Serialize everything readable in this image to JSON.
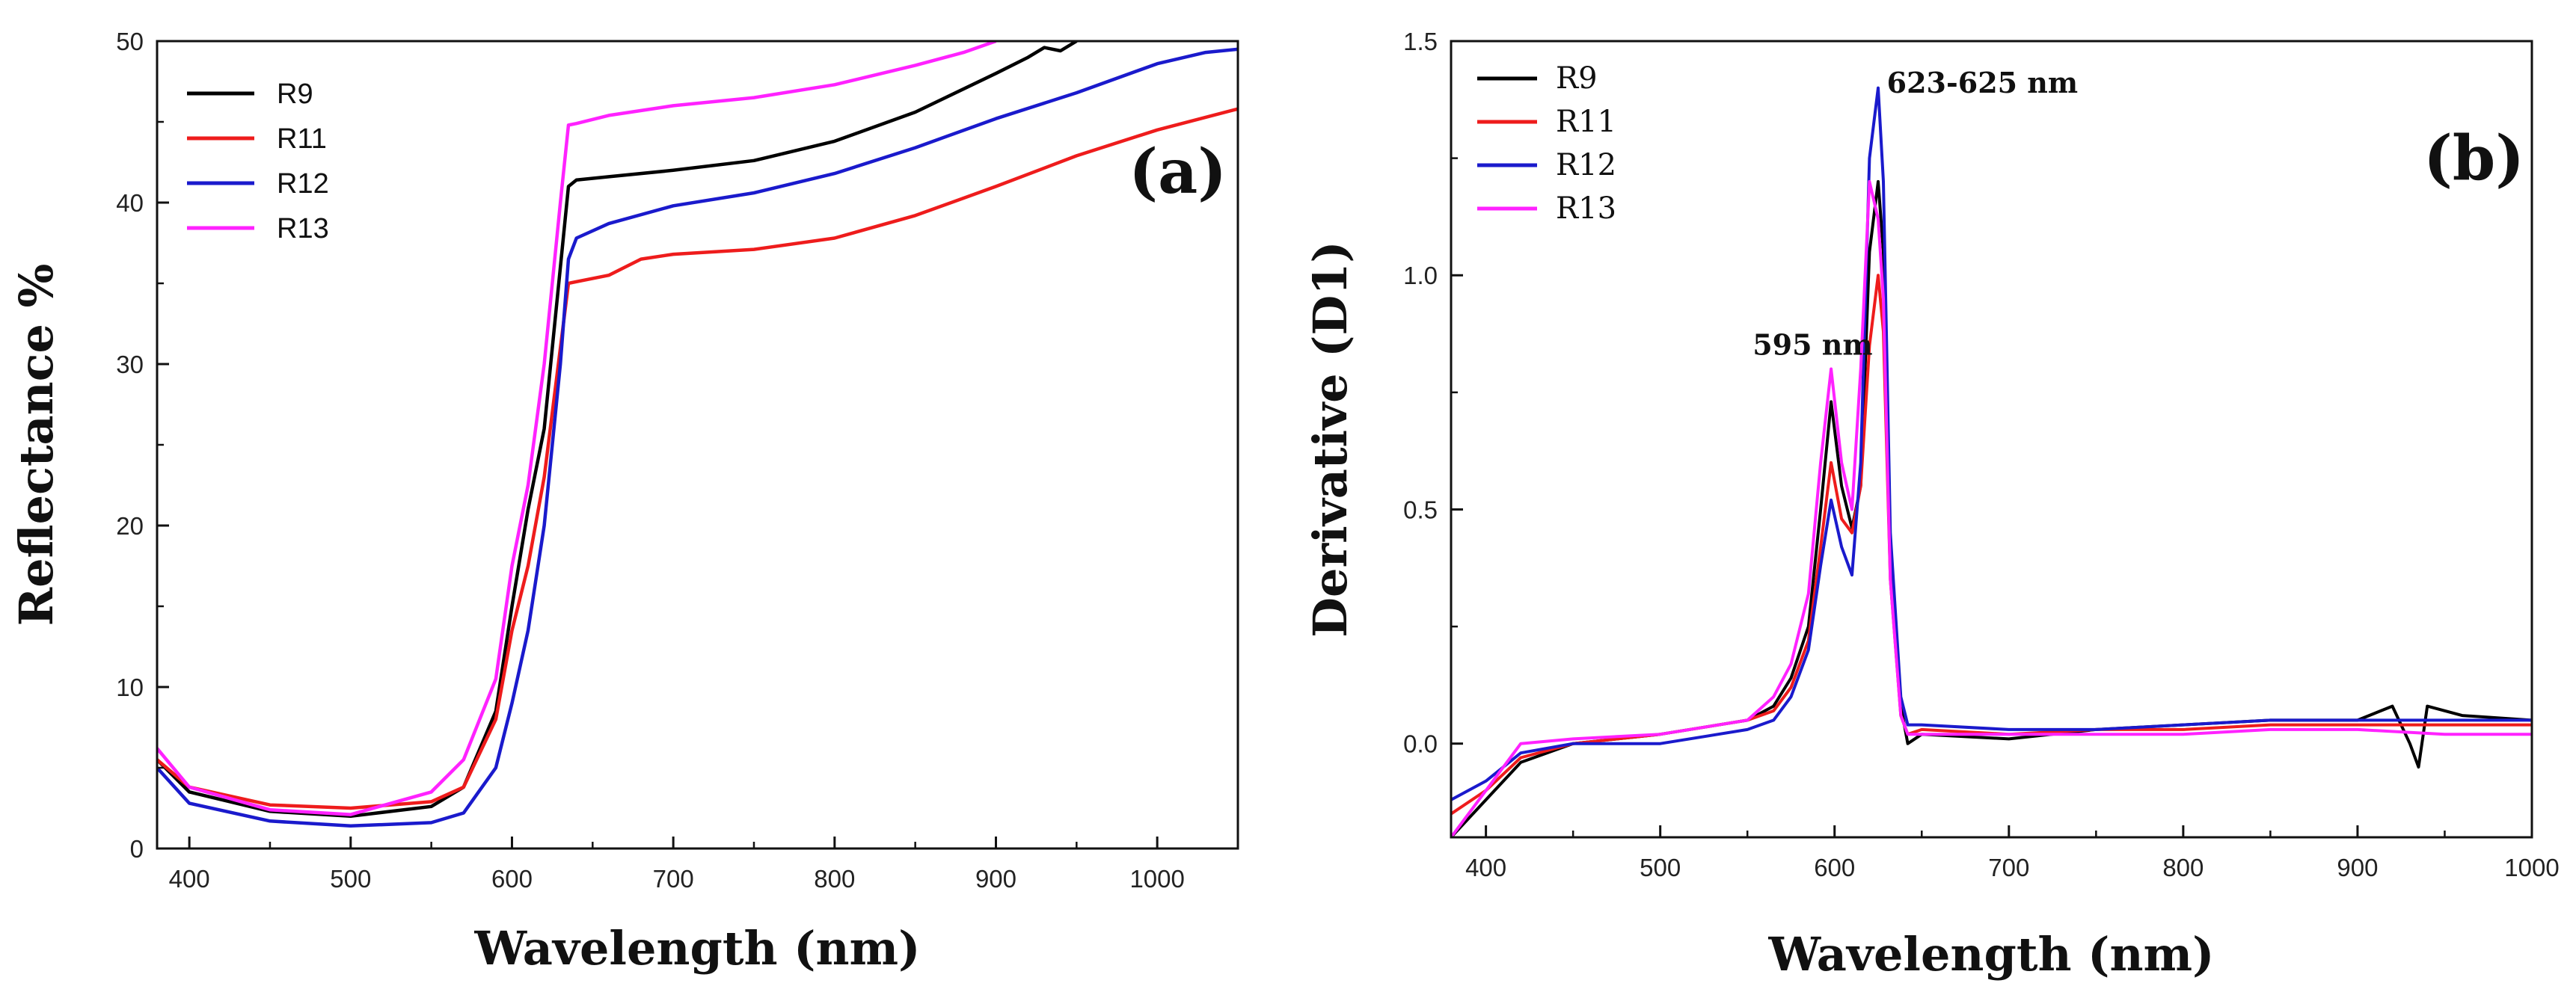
{
  "chart_data": [
    {
      "type": "line",
      "panel_label": "(a)",
      "xlabel": "Wavelength (nm)",
      "ylabel": "Reflectance %",
      "xlim": [
        380,
        1050
      ],
      "ylim": [
        0,
        50
      ],
      "xticks": [
        400,
        500,
        600,
        700,
        800,
        900,
        1000
      ],
      "yticks": [
        0,
        10,
        20,
        30,
        40,
        50
      ],
      "grid": false,
      "legend_position": "top-left",
      "series": [
        {
          "name": "R9",
          "color": "#000000",
          "x": [
            380,
            400,
            450,
            500,
            550,
            570,
            590,
            600,
            610,
            620,
            630,
            635,
            640,
            660,
            700,
            750,
            800,
            850,
            900,
            920,
            930,
            940,
            950
          ],
          "y": [
            5.5,
            3.5,
            2.3,
            2.0,
            2.6,
            3.8,
            8.5,
            15.0,
            21.0,
            26.0,
            36.0,
            41.0,
            41.4,
            41.6,
            42.0,
            42.6,
            43.8,
            45.6,
            48.0,
            49.0,
            49.6,
            49.4,
            50.0
          ]
        },
        {
          "name": "R11",
          "color": "#ee1c1c",
          "x": [
            380,
            400,
            450,
            500,
            550,
            570,
            590,
            600,
            610,
            620,
            630,
            635,
            640,
            660,
            680,
            700,
            750,
            800,
            850,
            900,
            950,
            1000,
            1050
          ],
          "y": [
            5.5,
            3.8,
            2.7,
            2.5,
            2.9,
            3.8,
            8.0,
            13.5,
            17.5,
            23.0,
            31.0,
            35.0,
            35.1,
            35.5,
            36.5,
            36.8,
            37.1,
            37.8,
            39.2,
            41.0,
            42.9,
            44.5,
            45.8
          ]
        },
        {
          "name": "R12",
          "color": "#1a1acc",
          "x": [
            380,
            400,
            450,
            500,
            550,
            570,
            590,
            600,
            610,
            620,
            630,
            635,
            640,
            660,
            700,
            750,
            800,
            850,
            900,
            950,
            1000,
            1030,
            1050
          ],
          "y": [
            5.0,
            2.8,
            1.7,
            1.4,
            1.6,
            2.2,
            5.0,
            9.0,
            13.5,
            20.0,
            30.0,
            36.5,
            37.8,
            38.7,
            39.8,
            40.6,
            41.8,
            43.4,
            45.2,
            46.8,
            48.6,
            49.3,
            49.5
          ]
        },
        {
          "name": "R13",
          "color": "#ff22ff",
          "x": [
            380,
            400,
            450,
            500,
            550,
            570,
            590,
            600,
            610,
            620,
            630,
            635,
            640,
            660,
            700,
            750,
            800,
            850,
            880,
            900
          ],
          "y": [
            6.2,
            3.8,
            2.4,
            2.1,
            3.5,
            5.5,
            10.5,
            17.5,
            22.5,
            30.0,
            40.0,
            44.8,
            44.9,
            45.4,
            46.0,
            46.5,
            47.3,
            48.5,
            49.3,
            50.0
          ]
        }
      ]
    },
    {
      "type": "line",
      "panel_label": "(b)",
      "xlabel": "Wavelength (nm)",
      "ylabel": "Derivative (D1)",
      "xlim": [
        380,
        1000
      ],
      "ylim": [
        -0.2,
        1.5
      ],
      "xticks": [
        400,
        500,
        600,
        700,
        800,
        900,
        1000
      ],
      "yticks": [
        0.0,
        0.5,
        1.0,
        1.5
      ],
      "ytick_labels": [
        "0.0",
        "0.5",
        "1.0",
        "1.5"
      ],
      "grid": false,
      "legend_position": "top-left",
      "annotations": [
        {
          "text": "623-625 nm",
          "x": 630,
          "y": 1.39
        },
        {
          "text": "595 nm",
          "x": 553,
          "y": 0.83
        }
      ],
      "series": [
        {
          "name": "R9",
          "color": "#000000",
          "x": [
            380,
            400,
            420,
            450,
            500,
            550,
            565,
            575,
            585,
            592,
            598,
            604,
            610,
            615,
            620,
            625,
            628,
            632,
            638,
            642,
            650,
            700,
            750,
            800,
            850,
            900,
            920,
            930,
            935,
            940,
            960,
            1000
          ],
          "y": [
            -0.2,
            -0.12,
            -0.04,
            0.0,
            0.02,
            0.05,
            0.08,
            0.14,
            0.25,
            0.5,
            0.73,
            0.55,
            0.46,
            0.55,
            1.05,
            1.2,
            1.05,
            0.4,
            0.08,
            0.0,
            0.02,
            0.01,
            0.03,
            0.04,
            0.05,
            0.05,
            0.08,
            0.0,
            -0.05,
            0.08,
            0.06,
            0.05
          ]
        },
        {
          "name": "R11",
          "color": "#ee1c1c",
          "x": [
            380,
            400,
            420,
            450,
            500,
            550,
            565,
            575,
            585,
            592,
            598,
            604,
            610,
            615,
            620,
            625,
            628,
            632,
            638,
            642,
            650,
            700,
            750,
            800,
            850,
            900,
            950,
            1000
          ],
          "y": [
            -0.15,
            -0.1,
            -0.03,
            0.0,
            0.02,
            0.05,
            0.07,
            0.12,
            0.22,
            0.42,
            0.6,
            0.48,
            0.45,
            0.55,
            0.85,
            1.0,
            0.88,
            0.35,
            0.06,
            0.02,
            0.03,
            0.02,
            0.03,
            0.03,
            0.04,
            0.04,
            0.04,
            0.04
          ]
        },
        {
          "name": "R12",
          "color": "#1a1acc",
          "x": [
            380,
            400,
            420,
            450,
            500,
            550,
            565,
            575,
            585,
            592,
            598,
            604,
            610,
            615,
            620,
            625,
            628,
            632,
            638,
            642,
            650,
            700,
            750,
            800,
            850,
            900,
            950,
            1000
          ],
          "y": [
            -0.12,
            -0.08,
            -0.02,
            0.0,
            0.0,
            0.03,
            0.05,
            0.1,
            0.2,
            0.38,
            0.52,
            0.42,
            0.36,
            0.6,
            1.25,
            1.4,
            1.2,
            0.45,
            0.1,
            0.04,
            0.04,
            0.03,
            0.03,
            0.04,
            0.05,
            0.05,
            0.05,
            0.05
          ]
        },
        {
          "name": "R13",
          "color": "#ff22ff",
          "x": [
            380,
            400,
            420,
            450,
            500,
            550,
            565,
            575,
            585,
            592,
            598,
            604,
            610,
            615,
            620,
            625,
            628,
            632,
            638,
            642,
            650,
            700,
            750,
            800,
            850,
            900,
            950,
            1000
          ],
          "y": [
            -0.2,
            -0.1,
            0.0,
            0.01,
            0.02,
            0.05,
            0.1,
            0.17,
            0.32,
            0.6,
            0.8,
            0.6,
            0.5,
            0.8,
            1.2,
            1.12,
            0.95,
            0.35,
            0.06,
            0.02,
            0.02,
            0.02,
            0.02,
            0.02,
            0.03,
            0.03,
            0.02,
            0.02
          ]
        }
      ]
    }
  ]
}
